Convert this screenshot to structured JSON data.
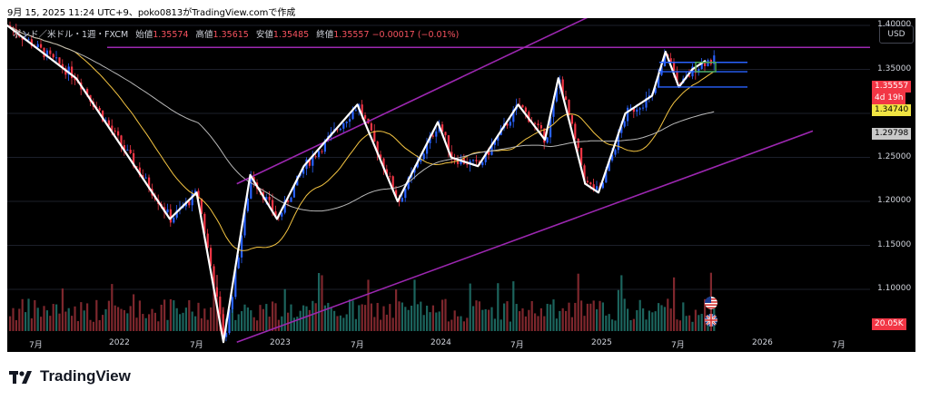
{
  "header": {
    "text": "9月 15, 2025 11:24 UTC+9、poko0813がTradingView.comで作成"
  },
  "symbol": {
    "name": "ポンド／米ドル・1週・FXCM",
    "open_label": "始値",
    "open": "1.35574",
    "high_label": "高値",
    "high": "1.35615",
    "low_label": "安値",
    "low": "1.35485",
    "close_label": "終値",
    "close": "1.35557",
    "change": "−0.00017 (−0.01%)"
  },
  "currency_button": "USD",
  "price_tags": {
    "last_price": "1.35557",
    "countdown": "4d 19h",
    "level_yellow": "1.34740",
    "level_gray": "1.29798",
    "volume": "20.05K"
  },
  "brand": {
    "name": "TradingView"
  },
  "icons": [
    "tradingview-logo-icon",
    "us-flag-icon",
    "uk-flag-icon"
  ],
  "colors": {
    "up": "#2962ff",
    "down": "#f23645",
    "channel": "#9c27b0",
    "ma_fast": "#f5c542",
    "ma_slow": "#b8b8b8",
    "zigzag": "#ffffff"
  },
  "chart_data": {
    "type": "candlestick",
    "y_axis": {
      "ticks": [
        "1.40000",
        "1.35000",
        "1.30000",
        "1.25000",
        "1.20000",
        "1.15000",
        "1.10000"
      ],
      "range": [
        1.06,
        1.43
      ]
    },
    "x_axis": {
      "ticks": [
        "7月",
        "2022",
        "7月",
        "2023",
        "7月",
        "2024",
        "7月",
        "2025",
        "7月",
        "2026",
        "7月"
      ]
    },
    "zigzag": {
      "x": [
        "2021-04",
        "2021-10",
        "2022-05",
        "2022-07",
        "2022-09",
        "2022-11",
        "2023-01",
        "2023-03",
        "2023-07",
        "2023-10",
        "2024-01",
        "2024-02",
        "2024-04",
        "2024-07",
        "2024-09",
        "2024-10",
        "2024-12",
        "2025-01",
        "2025-03",
        "2025-05",
        "2025-06",
        "2025-07",
        "2025-08",
        "2025-09"
      ],
      "y": [
        1.41,
        1.34,
        1.18,
        1.21,
        1.04,
        1.23,
        1.18,
        1.24,
        1.31,
        1.2,
        1.29,
        1.25,
        1.24,
        1.31,
        1.27,
        1.34,
        1.22,
        1.21,
        1.3,
        1.32,
        1.37,
        1.33,
        1.35,
        1.36
      ]
    },
    "channel": {
      "upper": {
        "from": [
          "2022-10",
          1.22
        ],
        "to": [
          "2025-10",
          1.48
        ]
      },
      "lower": {
        "from": [
          "2022-10",
          1.04
        ],
        "to": [
          "2026-05",
          1.28
        ]
      }
    },
    "horizontal_level": 1.375,
    "position_box": {
      "entry": 1.3474,
      "target": 1.358,
      "stop": 1.33
    }
  }
}
